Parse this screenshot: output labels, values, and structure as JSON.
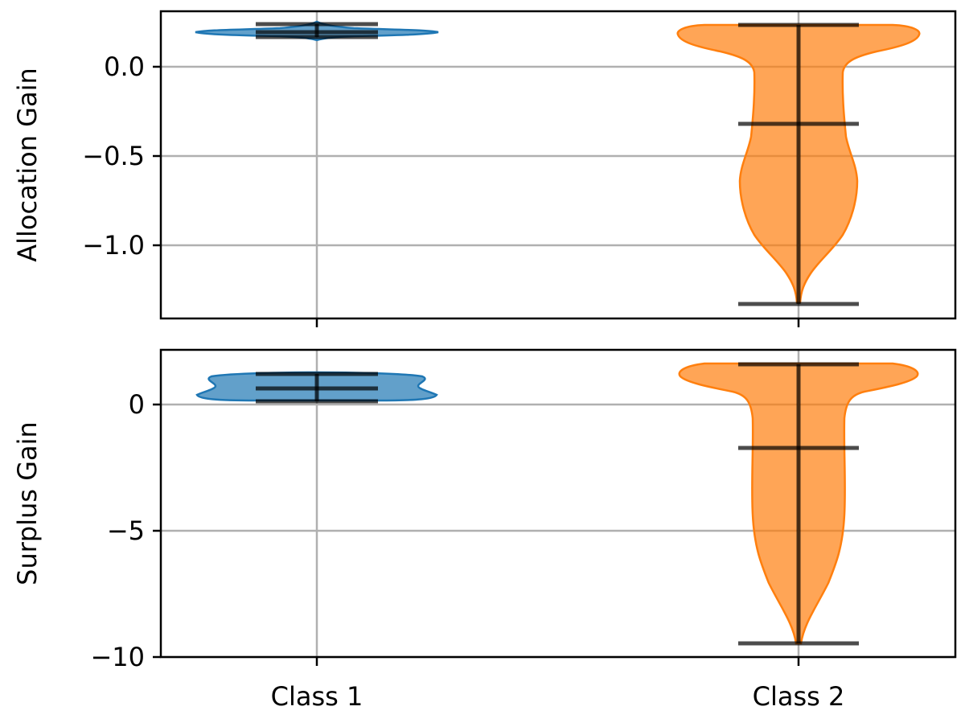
{
  "chart_data": [
    {
      "type": "violin",
      "ylabel": "Allocation Gain",
      "yticks": [
        "0.0",
        "−0.5",
        "−1.0"
      ],
      "ylim": [
        -1.42,
        0.31
      ],
      "grid": true,
      "categories": [
        "Class 1",
        "Class 2"
      ],
      "colors": [
        "#1f77b4",
        "#ff7f0e"
      ],
      "series": [
        {
          "category": "Class 1",
          "min": 0.17,
          "median": 0.19,
          "max": 0.24
        },
        {
          "category": "Class 2",
          "min": -1.33,
          "median": -0.32,
          "max": 0.24
        }
      ]
    },
    {
      "type": "violin",
      "ylabel": "Surplus Gain",
      "yticks": [
        "0",
        "−5",
        "−10"
      ],
      "ylim": [
        -10.1,
        2.2
      ],
      "grid": true,
      "categories": [
        "Class 1",
        "Class 2"
      ],
      "xticklabels": [
        "Class 1",
        "Class 2"
      ],
      "colors": [
        "#1f77b4",
        "#ff7f0e"
      ],
      "series": [
        {
          "category": "Class 1",
          "min": 0.15,
          "median": 0.65,
          "max": 1.2
        },
        {
          "category": "Class 2",
          "min": -9.45,
          "median": -1.7,
          "max": 1.6
        }
      ]
    }
  ]
}
